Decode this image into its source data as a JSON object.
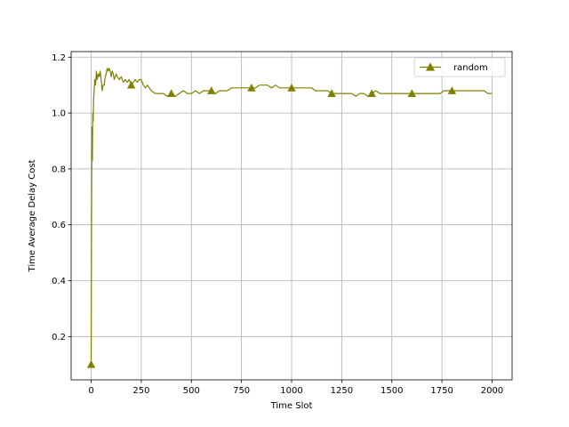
{
  "chart_data": {
    "type": "line",
    "title": "",
    "xlabel": "Time Slot",
    "ylabel": "Time Average Delay Cost",
    "xlim": [
      -100,
      2100
    ],
    "ylim": [
      0.045,
      1.22
    ],
    "xticks": [
      0,
      250,
      500,
      750,
      1000,
      1250,
      1500,
      1750,
      2000
    ],
    "yticks": [
      0.2,
      0.4,
      0.6,
      0.8,
      1.0,
      1.2
    ],
    "xtick_labels": [
      "0",
      "250",
      "500",
      "750",
      "1000",
      "1250",
      "1500",
      "1750",
      "2000"
    ],
    "ytick_labels": [
      "0.2",
      "0.4",
      "0.6",
      "0.8",
      "1.0",
      "1.2"
    ],
    "grid": true,
    "legend_position": "top-right",
    "series": [
      {
        "name": "random",
        "color": "#808000",
        "marker": "triangle-up",
        "x": [
          0,
          2,
          4,
          6,
          8,
          10,
          12,
          15,
          18,
          22,
          26,
          30,
          35,
          40,
          45,
          50,
          55,
          60,
          65,
          70,
          75,
          80,
          85,
          90,
          95,
          100,
          105,
          110,
          115,
          120,
          125,
          130,
          140,
          150,
          160,
          170,
          180,
          190,
          200,
          210,
          220,
          230,
          240,
          250,
          260,
          270,
          280,
          290,
          300,
          320,
          340,
          360,
          380,
          400,
          420,
          440,
          460,
          480,
          500,
          520,
          540,
          560,
          580,
          600,
          620,
          640,
          660,
          680,
          700,
          720,
          740,
          760,
          780,
          800,
          820,
          840,
          860,
          880,
          900,
          920,
          940,
          960,
          980,
          1000,
          1020,
          1040,
          1060,
          1080,
          1100,
          1120,
          1140,
          1160,
          1180,
          1200,
          1220,
          1240,
          1260,
          1280,
          1300,
          1320,
          1340,
          1360,
          1380,
          1400,
          1420,
          1440,
          1460,
          1480,
          1500,
          1520,
          1540,
          1560,
          1580,
          1600,
          1620,
          1640,
          1660,
          1680,
          1700,
          1720,
          1740,
          1760,
          1780,
          1800,
          1820,
          1840,
          1860,
          1880,
          1900,
          1920,
          1940,
          1960,
          1980,
          2000
        ],
        "y": [
          0.1,
          0.65,
          0.95,
          0.83,
          1.0,
          0.97,
          1.05,
          1.08,
          1.12,
          1.1,
          1.15,
          1.12,
          1.14,
          1.13,
          1.15,
          1.12,
          1.08,
          1.1,
          1.1,
          1.13,
          1.14,
          1.16,
          1.15,
          1.16,
          1.15,
          1.13,
          1.15,
          1.14,
          1.12,
          1.13,
          1.14,
          1.13,
          1.12,
          1.13,
          1.11,
          1.12,
          1.11,
          1.12,
          1.1,
          1.11,
          1.12,
          1.11,
          1.12,
          1.12,
          1.1,
          1.09,
          1.1,
          1.09,
          1.08,
          1.07,
          1.07,
          1.07,
          1.06,
          1.07,
          1.06,
          1.07,
          1.08,
          1.07,
          1.07,
          1.08,
          1.07,
          1.08,
          1.08,
          1.08,
          1.07,
          1.08,
          1.08,
          1.08,
          1.09,
          1.09,
          1.09,
          1.09,
          1.09,
          1.09,
          1.09,
          1.1,
          1.1,
          1.1,
          1.09,
          1.1,
          1.09,
          1.09,
          1.09,
          1.09,
          1.09,
          1.09,
          1.09,
          1.09,
          1.09,
          1.08,
          1.08,
          1.08,
          1.08,
          1.07,
          1.07,
          1.07,
          1.07,
          1.07,
          1.07,
          1.06,
          1.07,
          1.07,
          1.06,
          1.07,
          1.08,
          1.07,
          1.07,
          1.07,
          1.07,
          1.07,
          1.07,
          1.07,
          1.07,
          1.07,
          1.07,
          1.07,
          1.07,
          1.07,
          1.07,
          1.07,
          1.07,
          1.08,
          1.08,
          1.08,
          1.08,
          1.08,
          1.08,
          1.08,
          1.08,
          1.08,
          1.08,
          1.08,
          1.07,
          1.07
        ],
        "marker_x": [
          0,
          200,
          400,
          600,
          800,
          1000,
          1200,
          1400,
          1600,
          1800
        ]
      }
    ]
  }
}
